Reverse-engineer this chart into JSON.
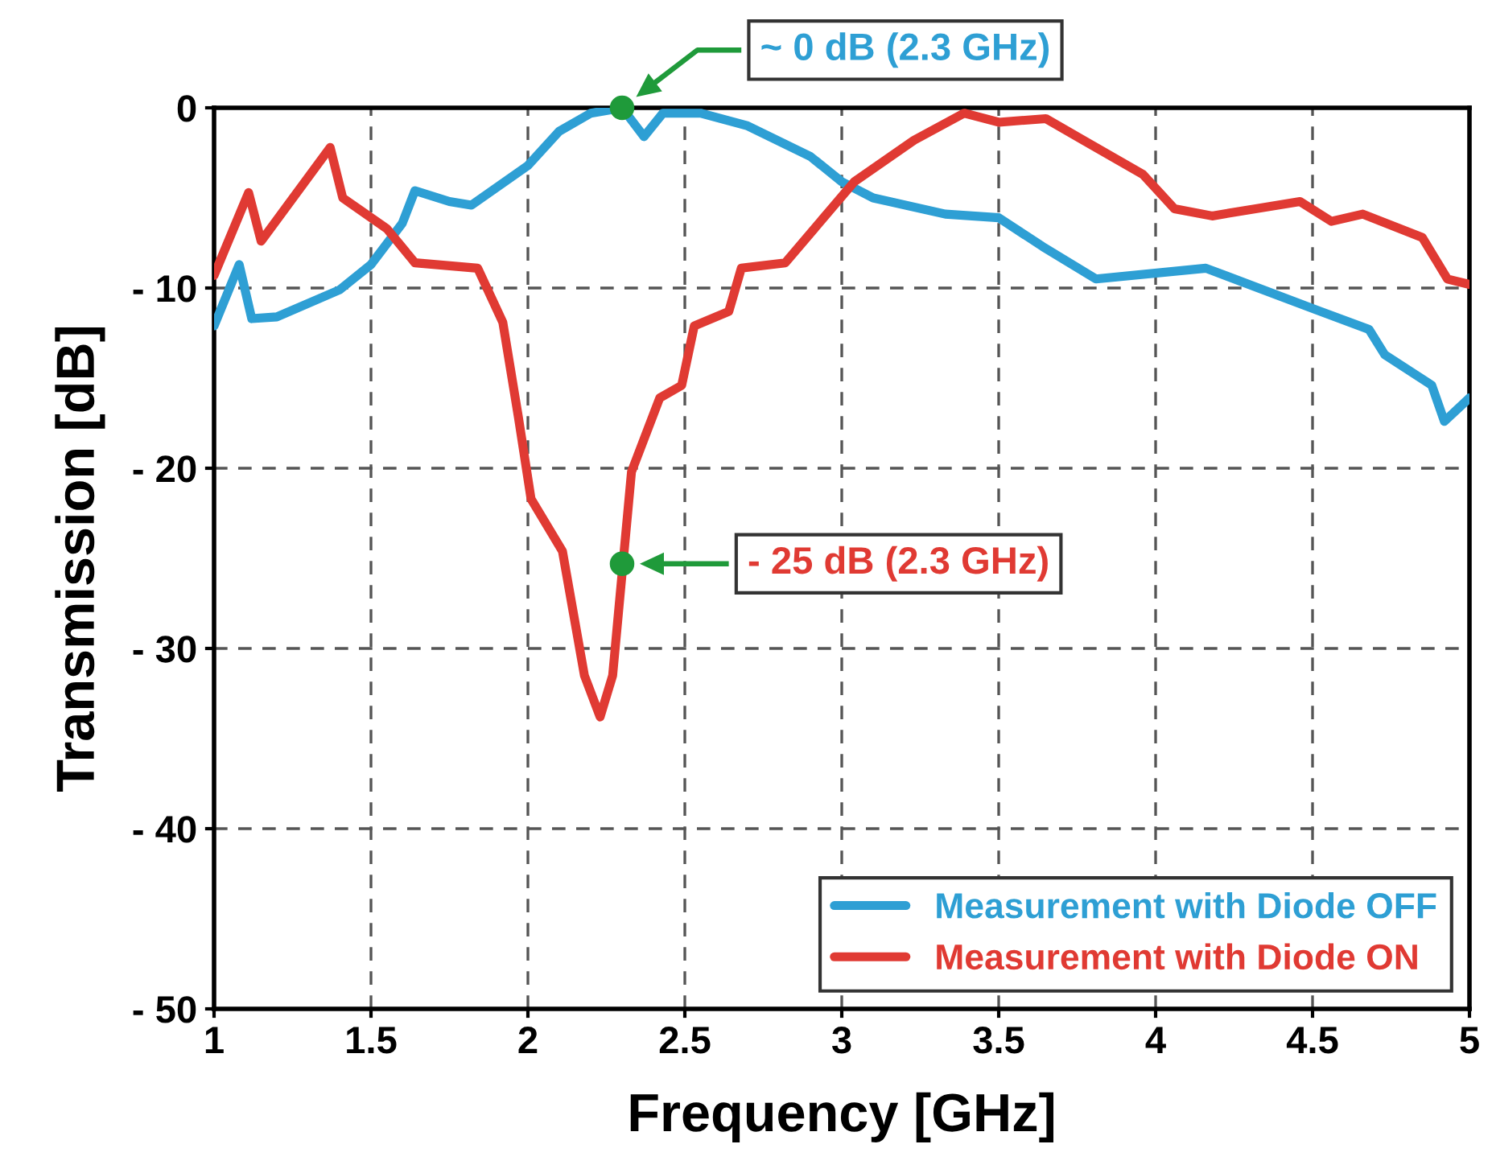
{
  "chart_data": {
    "type": "line",
    "xlabel": "Frequency [GHz]",
    "ylabel": "Transmission [dB]",
    "xlim": [
      1,
      5
    ],
    "ylim": [
      -50,
      0
    ],
    "xticks": [
      1,
      1.5,
      2,
      2.5,
      3,
      3.5,
      4,
      4.5,
      5
    ],
    "yticks": [
      {
        "value": -50,
        "label": "- 50"
      },
      {
        "value": -40,
        "label": "- 40"
      },
      {
        "value": -30,
        "label": "- 30"
      },
      {
        "value": -20,
        "label": "- 20"
      },
      {
        "value": -10,
        "label": "- 10"
      },
      0
    ],
    "grid": true,
    "legend": "bottom right",
    "line_style": "solid",
    "series": [
      {
        "name": "Measurement with Diode OFF",
        "color": "#2e9fd4",
        "x": [
          1.0,
          1.08,
          1.12,
          1.2,
          1.4,
          1.5,
          1.6,
          1.64,
          1.75,
          1.82,
          2.0,
          2.1,
          2.2,
          2.3,
          2.37,
          2.43,
          2.55,
          2.7,
          2.9,
          3.0,
          3.1,
          3.33,
          3.5,
          3.64,
          3.81,
          4.16,
          4.51,
          4.68,
          4.73,
          4.88,
          4.92,
          5.0
        ],
        "values": [
          -12.1,
          -8.7,
          -11.7,
          -11.6,
          -10.1,
          -8.7,
          -6.4,
          -4.6,
          -5.2,
          -5.4,
          -3.2,
          -1.3,
          -0.3,
          0,
          -1.6,
          -0.3,
          -0.3,
          -1.0,
          -2.7,
          -4.1,
          -5.0,
          -5.9,
          -6.1,
          -7.7,
          -9.5,
          -8.9,
          -11.2,
          -12.3,
          -13.7,
          -15.4,
          -17.4,
          -16.1
        ]
      },
      {
        "name": "Measurement with Diode ON",
        "color": "#e03a33",
        "x": [
          1.0,
          1.11,
          1.15,
          1.37,
          1.41,
          1.55,
          1.64,
          1.84,
          1.92,
          1.97,
          2.01,
          2.11,
          2.18,
          2.23,
          2.27,
          2.33,
          2.42,
          2.49,
          2.53,
          2.64,
          2.68,
          2.82,
          3.04,
          3.23,
          3.39,
          3.5,
          3.65,
          3.77,
          3.96,
          4.06,
          4.18,
          4.46,
          4.56,
          4.66,
          4.85,
          4.93,
          5.0
        ],
        "values": [
          -9.3,
          -4.7,
          -7.4,
          -2.2,
          -5.0,
          -6.7,
          -8.6,
          -8.9,
          -11.9,
          -17.2,
          -21.7,
          -24.6,
          -31.5,
          -33.8,
          -31.5,
          -20.2,
          -16.1,
          -15.4,
          -12.1,
          -11.3,
          -8.9,
          -8.6,
          -4.1,
          -1.8,
          -0.3,
          -0.8,
          -0.6,
          -1.8,
          -3.7,
          -5.6,
          -6.0,
          -5.2,
          -6.3,
          -5.9,
          -7.2,
          -9.5,
          -9.8
        ]
      },
      {
        "type": "scatter",
        "color": "#1f9a3a",
        "marker": "circle",
        "x": [
          2.3,
          2.3
        ],
        "values": [
          0,
          -25.3
        ]
      }
    ],
    "annotations": [
      "~ 0 dB (2.3 GHz)",
      "- 25 dB (2.3 GHz)"
    ]
  }
}
